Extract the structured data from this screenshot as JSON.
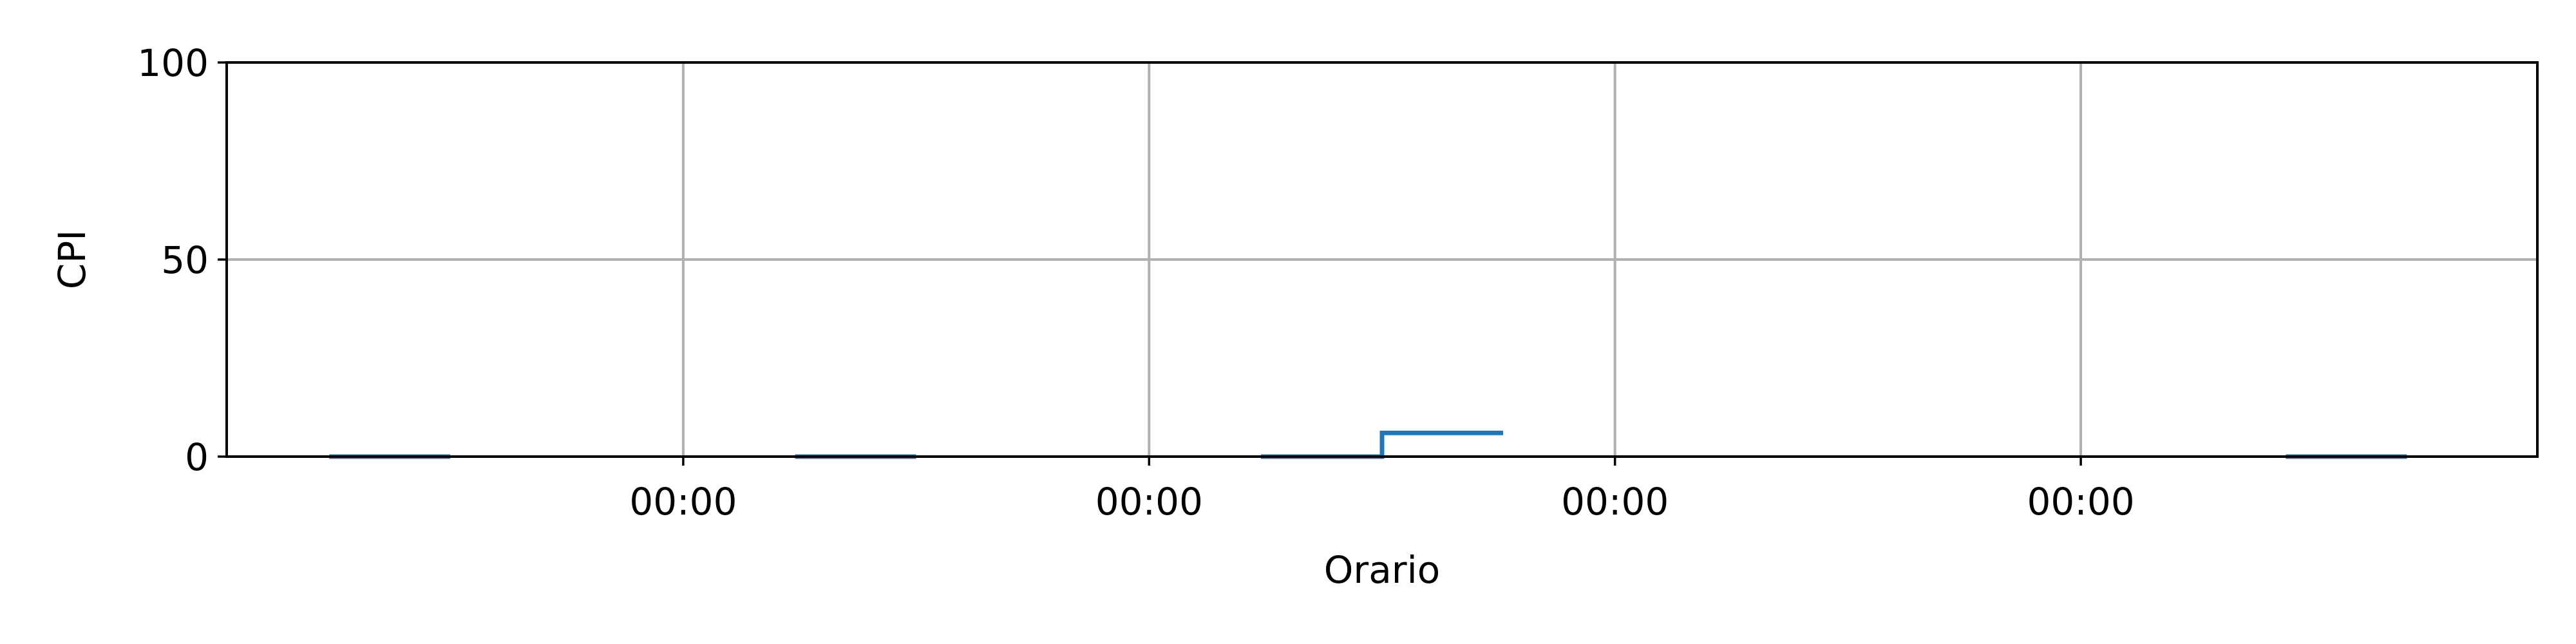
{
  "chart_data": {
    "type": "line",
    "xlabel": "Orario",
    "ylabel": "CPI",
    "ylim": [
      0,
      100
    ],
    "yticks": [
      0,
      50,
      100
    ],
    "xlim": [
      0,
      24.8
    ],
    "xticks": [
      {
        "value": 4.9,
        "label": "00:00"
      },
      {
        "value": 9.9,
        "label": "00:00"
      },
      {
        "value": 14.9,
        "label": "00:00"
      },
      {
        "value": 19.9,
        "label": "00:00"
      }
    ],
    "grid": true,
    "legend": "none",
    "series": [
      {
        "color": "#1f77b4",
        "segments": [
          [
            [
              1.1,
              0
            ],
            [
              2.4,
              0
            ]
          ],
          [
            [
              6.1,
              0
            ],
            [
              7.4,
              0
            ]
          ],
          [
            [
              11.1,
              0
            ],
            [
              12.4,
              0
            ],
            [
              12.4,
              6
            ],
            [
              13.7,
              6
            ]
          ],
          [
            [
              22.1,
              0
            ],
            [
              23.4,
              0
            ]
          ]
        ]
      }
    ]
  }
}
